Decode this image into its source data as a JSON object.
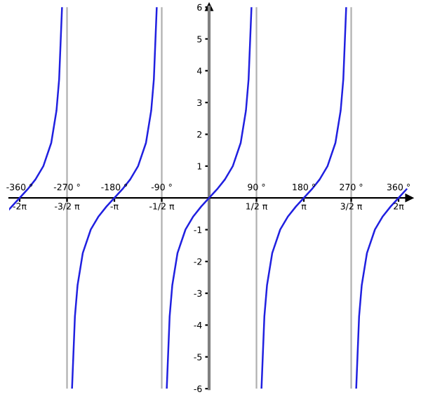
{
  "chart_data": {
    "type": "line",
    "x": [
      -380,
      -375,
      -360,
      -345,
      -330,
      -315,
      -300,
      -290,
      -285,
      -279.5,
      -270,
      -260.5,
      -255,
      -250,
      -240,
      -225,
      -210,
      -195,
      -180,
      -165,
      -150,
      -135,
      -120,
      -110,
      -105,
      -99.5,
      -90,
      -80.5,
      -75,
      -70,
      -60,
      -45,
      -30,
      -15,
      0,
      15,
      30,
      45,
      60,
      70,
      75,
      80.5,
      90,
      99.5,
      105,
      110,
      120,
      135,
      150,
      165,
      180,
      195,
      210,
      225,
      240,
      250,
      255,
      260.5,
      270,
      279.5,
      285,
      290,
      300,
      315,
      330,
      345,
      360,
      375
    ],
    "series": [
      {
        "color": "#2020e0",
        "values": [
          -0.36,
          -0.27,
          0,
          0.27,
          0.58,
          1,
          1.73,
          2.75,
          3.73,
          6,
          null,
          -6,
          -3.73,
          -2.75,
          -1.73,
          -1,
          -0.58,
          -0.27,
          0,
          0.27,
          0.58,
          1,
          1.73,
          2.75,
          3.73,
          6,
          null,
          -6,
          -3.73,
          -2.75,
          -1.73,
          -1,
          -0.58,
          -0.27,
          0,
          0.27,
          0.58,
          1,
          1.73,
          2.75,
          3.73,
          6,
          null,
          -6,
          -3.73,
          -2.75,
          -1.73,
          -1,
          -0.58,
          -0.27,
          0,
          0.27,
          0.58,
          1,
          1.73,
          2.75,
          3.73,
          6,
          null,
          -6,
          -3.73,
          -2.75,
          -1.73,
          -1,
          -0.58,
          -0.27,
          0,
          0.27
        ]
      }
    ],
    "xlim": [
      -380,
      380
    ],
    "ylim": [
      -6,
      6
    ],
    "xticks": [
      {
        "value": -360,
        "label": "-360 °"
      },
      {
        "value": -270,
        "label": "-270 °"
      },
      {
        "value": -180,
        "label": "-180 °"
      },
      {
        "value": -90,
        "label": "-90 °"
      },
      {
        "value": 90,
        "label": "90 °"
      },
      {
        "value": 180,
        "label": "180 °"
      },
      {
        "value": 270,
        "label": "270 °"
      },
      {
        "value": 360,
        "label": "360 °"
      }
    ],
    "x2lim": [
      -6.632,
      6.632
    ],
    "x2ticks": [
      {
        "value": -6.283,
        "label": "-2π"
      },
      {
        "value": -4.712,
        "label": "-3/2 π"
      },
      {
        "value": -3.142,
        "label": "-π"
      },
      {
        "value": -1.571,
        "label": "-1/2 π"
      },
      {
        "value": 1.571,
        "label": "1/2 π"
      },
      {
        "value": 3.142,
        "label": "π"
      },
      {
        "value": 4.712,
        "label": "3/2 π"
      },
      {
        "value": 6.283,
        "label": "2π"
      }
    ],
    "yticks": [
      -6,
      -5,
      -4,
      -3,
      -2,
      -1,
      1,
      2,
      3,
      4,
      5,
      6
    ],
    "ref_lines": [
      {
        "axis": "x",
        "value": -270,
        "color": "#b0b0b0"
      },
      {
        "axis": "x",
        "value": -90,
        "color": "#b0b0b0"
      },
      {
        "axis": "x",
        "value": 90,
        "color": "#b0b0b0"
      },
      {
        "axis": "x",
        "value": 270,
        "color": "#b0b0b0"
      }
    ],
    "grid": false
  }
}
